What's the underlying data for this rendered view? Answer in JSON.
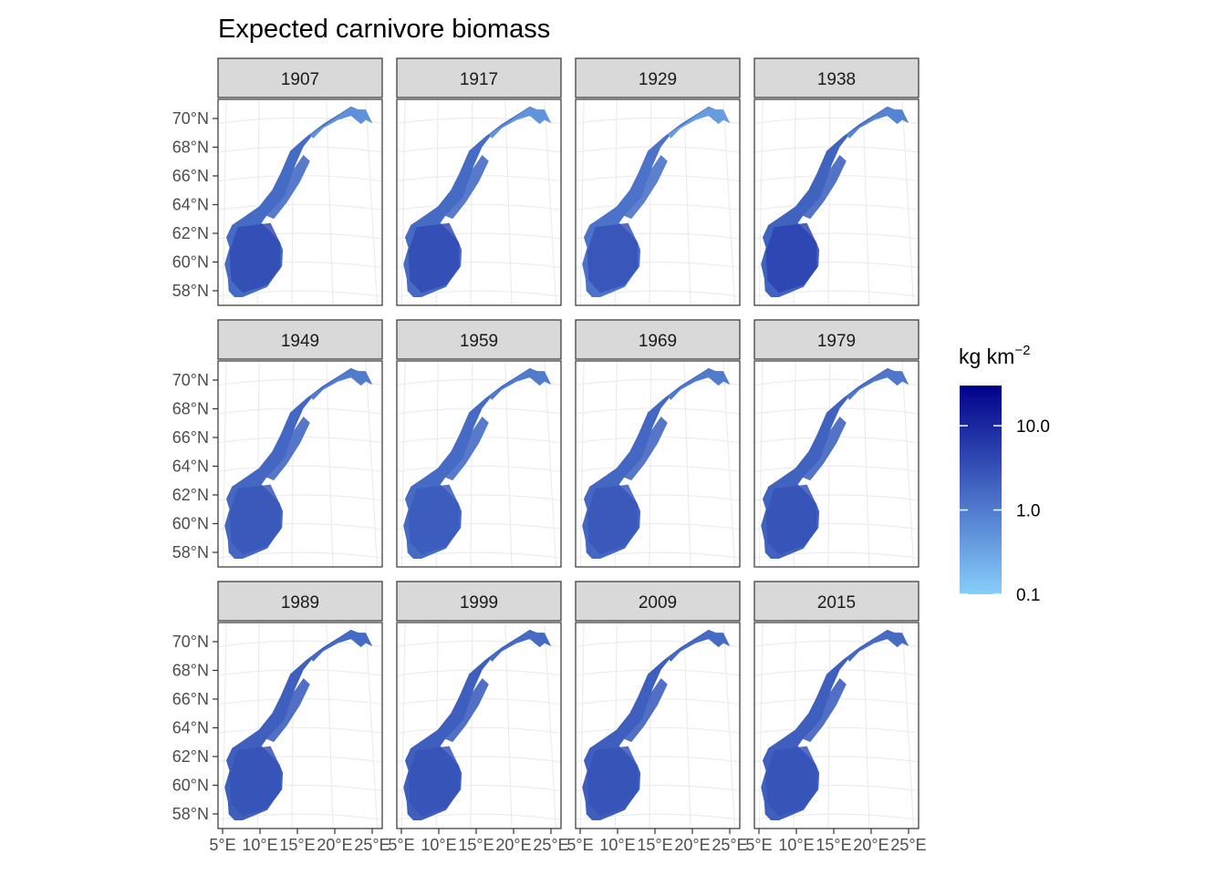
{
  "title": "Expected carnivore biomass",
  "panels": [
    {
      "year": "1907",
      "north_shade": 0.3,
      "mid_shade": 0.48,
      "south_shade": 0.64
    },
    {
      "year": "1917",
      "north_shade": 0.28,
      "mid_shade": 0.48,
      "south_shade": 0.64
    },
    {
      "year": "1929",
      "north_shade": 0.24,
      "mid_shade": 0.44,
      "south_shade": 0.6
    },
    {
      "year": "1938",
      "north_shade": 0.36,
      "mid_shade": 0.52,
      "south_shade": 0.68
    },
    {
      "year": "1949",
      "north_shade": 0.4,
      "mid_shade": 0.5,
      "south_shade": 0.58
    },
    {
      "year": "1959",
      "north_shade": 0.4,
      "mid_shade": 0.48,
      "south_shade": 0.56
    },
    {
      "year": "1969",
      "north_shade": 0.4,
      "mid_shade": 0.5,
      "south_shade": 0.58
    },
    {
      "year": "1979",
      "north_shade": 0.42,
      "mid_shade": 0.52,
      "south_shade": 0.6
    },
    {
      "year": "1989",
      "north_shade": 0.48,
      "mid_shade": 0.54,
      "south_shade": 0.6
    },
    {
      "year": "1999",
      "north_shade": 0.48,
      "mid_shade": 0.54,
      "south_shade": 0.6
    },
    {
      "year": "2009",
      "north_shade": 0.48,
      "mid_shade": 0.54,
      "south_shade": 0.6
    },
    {
      "year": "2015",
      "north_shade": 0.48,
      "mid_shade": 0.54,
      "south_shade": 0.6
    }
  ],
  "y_axis_labels": [
    "70°N",
    "68°N",
    "66°N",
    "64°N",
    "62°N",
    "60°N",
    "58°N"
  ],
  "x_axis_labels": [
    "5°E",
    "10°E",
    "15°E",
    "20°E",
    "25°E"
  ],
  "legend": {
    "title": "kg km",
    "title_superscript": "−2",
    "scale": "log10",
    "range": [
      0.1,
      30
    ],
    "ticks": [
      {
        "value": 10,
        "label": "10.0"
      },
      {
        "value": 1,
        "label": "1.0"
      },
      {
        "value": 0.1,
        "label": "0.1"
      }
    ],
    "color_low": "#87CEFA",
    "color_high": "#00008B"
  },
  "colors": {
    "strip_bg": "#d9d9d9",
    "panel_border": "#333333",
    "grid": "#ebebeb",
    "axis_text": "#4d4d4d"
  }
}
